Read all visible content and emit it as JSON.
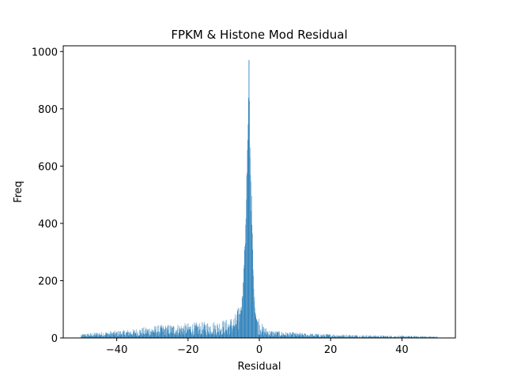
{
  "chart_data": {
    "type": "bar",
    "title": "FPKM & Histone Mod Residual",
    "xlabel": "Residual",
    "ylabel": "Freq",
    "xlim": [
      -55,
      55
    ],
    "ylim": [
      0,
      1020
    ],
    "x_ticks": [
      -40,
      -20,
      0,
      20,
      40
    ],
    "x_tick_labels": [
      "−40",
      "−20",
      "0",
      "20",
      "40"
    ],
    "y_ticks": [
      0,
      200,
      400,
      600,
      800,
      1000
    ],
    "y_tick_labels": [
      "0",
      "200",
      "400",
      "600",
      "800",
      "1000"
    ],
    "bar_color": "#1f77b4",
    "grid": false,
    "legend": "none",
    "bins": {
      "start": -50,
      "end": 50,
      "count": 1000
    },
    "profile": [
      [
        -50,
        8
      ],
      [
        -45,
        12
      ],
      [
        -40,
        15
      ],
      [
        -35,
        18
      ],
      [
        -32,
        22
      ],
      [
        -28,
        26
      ],
      [
        -24,
        28
      ],
      [
        -20,
        30
      ],
      [
        -16,
        32
      ],
      [
        -12,
        34
      ],
      [
        -9,
        38
      ],
      [
        -7,
        45
      ],
      [
        -6,
        60
      ],
      [
        -5,
        110
      ],
      [
        -4.5,
        190
      ],
      [
        -4,
        330
      ],
      [
        -3.6,
        520
      ],
      [
        -3.3,
        640
      ],
      [
        -3.05,
        760
      ],
      [
        -2.9,
        970
      ],
      [
        -2.7,
        720
      ],
      [
        -2.4,
        580
      ],
      [
        -2.1,
        420
      ],
      [
        -1.8,
        260
      ],
      [
        -1.5,
        150
      ],
      [
        -1,
        80
      ],
      [
        -0.5,
        55
      ],
      [
        0,
        40
      ],
      [
        1,
        25
      ],
      [
        3,
        16
      ],
      [
        8,
        12
      ],
      [
        15,
        9
      ],
      [
        25,
        7
      ],
      [
        35,
        5
      ],
      [
        45,
        4
      ],
      [
        50,
        3
      ]
    ],
    "peak": {
      "x": -2.9,
      "y": 970
    }
  }
}
